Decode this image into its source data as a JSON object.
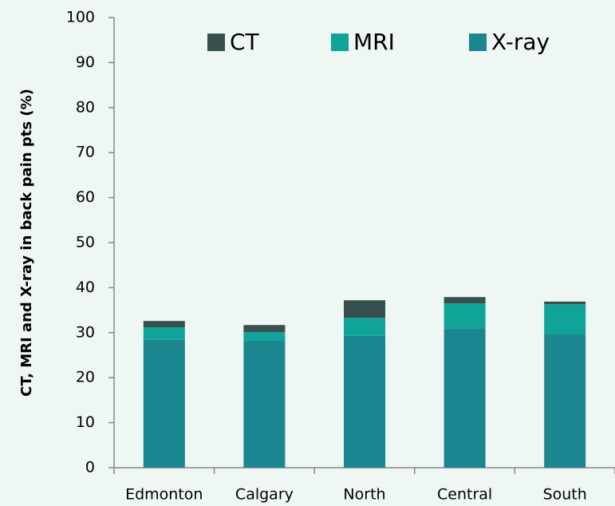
{
  "chart_data": {
    "type": "stacked_bar",
    "y_label": "CT, MRI and X-ray in back pain pts (%)",
    "categories": [
      "Edmonton",
      "Calgary",
      "North",
      "Central",
      "South"
    ],
    "series": [
      {
        "name": "X-ray",
        "color": "#1b8590",
        "values": [
          28.4,
          28.2,
          29.3,
          31.0,
          29.6
        ]
      },
      {
        "name": "MRI",
        "color": "#0fa39a",
        "values": [
          2.8,
          1.9,
          4.0,
          5.5,
          6.7
        ]
      },
      {
        "name": "CT",
        "color": "#37504f",
        "values": [
          1.4,
          1.6,
          3.9,
          1.4,
          0.6
        ]
      }
    ],
    "ylim": [
      0,
      100
    ],
    "yticks": [
      0,
      10,
      20,
      30,
      40,
      50,
      60,
      70,
      80,
      90,
      100
    ],
    "legend": "top"
  }
}
